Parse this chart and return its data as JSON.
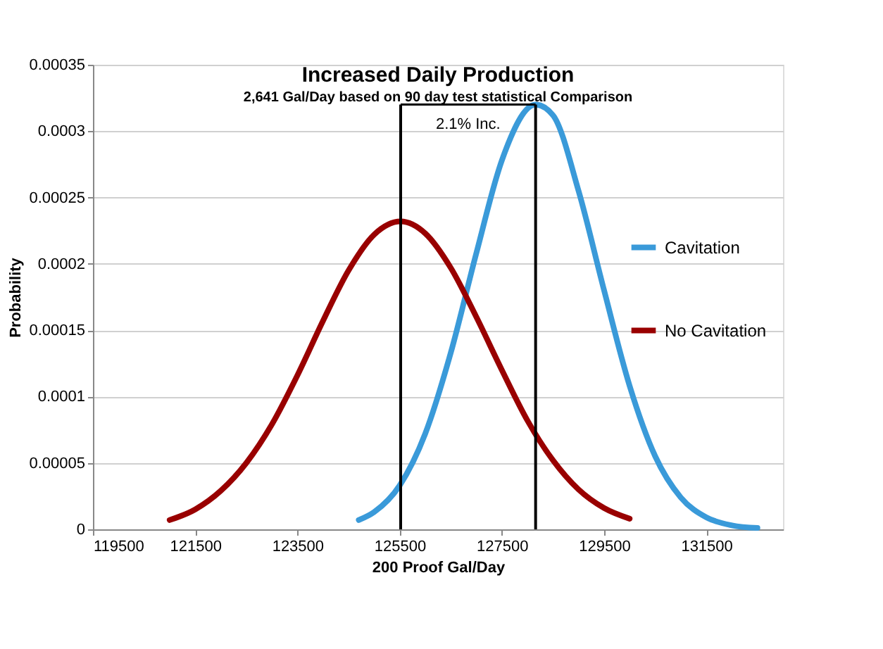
{
  "chart_data": {
    "type": "line",
    "title": "Increased Daily Production",
    "subtitle": "2,641 Gal/Day based on 90 day test statistical Comparison",
    "xlabel": "200 Proof Gal/Day",
    "ylabel": "Probability",
    "xlim": [
      119500,
      133000
    ],
    "xticks": [
      119500,
      121500,
      123500,
      125500,
      127500,
      129500,
      131500
    ],
    "ylim": [
      0,
      0.00035
    ],
    "yticks": [
      0,
      {
        "value": 5e-05,
        "label": "0.00005"
      },
      0.0001,
      0.00015,
      0.0002,
      0.00025,
      0.0003,
      0.00035
    ],
    "grid": "y",
    "legend": "right",
    "marker": "none",
    "line_style": "solid",
    "series": [
      {
        "name": "Cavitation",
        "color": "#3a9ad9",
        "x": [
          124700,
          125000,
          125500,
          126000,
          126500,
          127000,
          127500,
          128160,
          128500,
          129000,
          129500,
          130000,
          130500,
          131000,
          131500,
          132000,
          132500
        ],
        "values": [
          7e-06,
          1.3e-05,
          3.3e-05,
          7.2e-05,
          0.000133,
          0.000208,
          0.000278,
          0.00032,
          0.000312,
          0.000255,
          0.00018,
          0.000108,
          5.5e-05,
          2.4e-05,
          9e-06,
          3e-06,
          1e-06
        ]
      },
      {
        "name": "No Cavitation",
        "color": "#990000",
        "x": [
          121000,
          121500,
          122000,
          122500,
          123000,
          123500,
          124000,
          124500,
          125000,
          125520,
          126000,
          126500,
          127000,
          127500,
          128000,
          128500,
          129000,
          129500,
          130000
        ],
        "values": [
          7e-06,
          1.5e-05,
          2.9e-05,
          5e-05,
          7.9e-05,
          0.000116,
          0.000157,
          0.000195,
          0.000222,
          0.000232,
          0.000223,
          0.000197,
          0.00016,
          0.00012,
          8.2e-05,
          5.2e-05,
          3e-05,
          1.6e-05,
          8e-06
        ]
      }
    ],
    "ref_lines": [
      {
        "axis": "x",
        "value": 125520,
        "color": "#000000"
      },
      {
        "axis": "x",
        "value": 128160,
        "color": "#000000"
      }
    ],
    "annotations": [
      "2.1% Inc."
    ]
  }
}
